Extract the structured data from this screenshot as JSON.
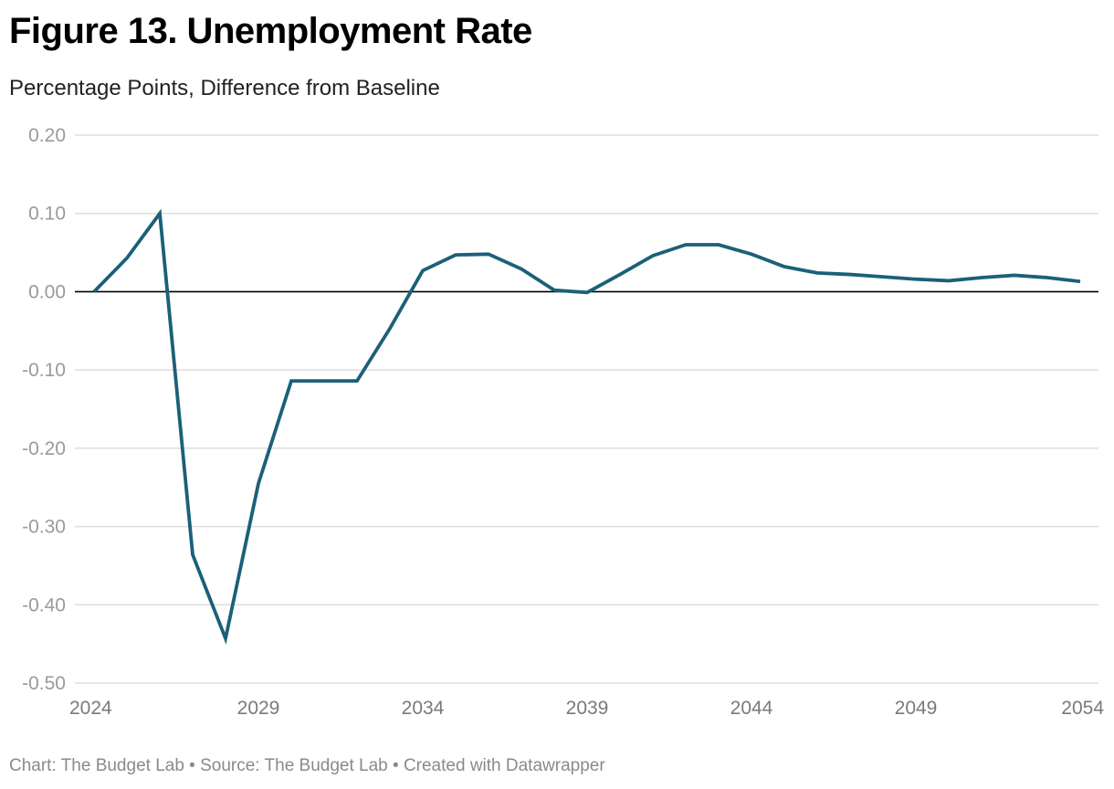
{
  "header": {
    "title": "Figure 13. Unemployment Rate",
    "subtitle": "Percentage Points, Difference from Baseline"
  },
  "footer": {
    "text": "Chart: The Budget Lab • Source: The Budget Lab • Created with Datawrapper"
  },
  "colors": {
    "line": "#1b6078",
    "grid": "#dddddd",
    "zero": "#000000"
  },
  "chart_data": {
    "type": "line",
    "title": "Figure 13. Unemployment Rate",
    "subtitle": "Percentage Points, Difference from Baseline",
    "xlabel": "",
    "ylabel": "",
    "x": [
      2024,
      2025,
      2026,
      2027,
      2028,
      2029,
      2030,
      2031,
      2032,
      2033,
      2034,
      2035,
      2036,
      2037,
      2038,
      2039,
      2040,
      2041,
      2042,
      2043,
      2044,
      2045,
      2046,
      2047,
      2048,
      2049,
      2050,
      2051,
      2052,
      2053,
      2054
    ],
    "series": [
      {
        "name": "Unemployment Rate",
        "values": [
          0.0,
          0.043,
          0.1,
          -0.336,
          -0.443,
          -0.245,
          -0.114,
          -0.114,
          -0.114,
          -0.047,
          0.027,
          0.047,
          0.048,
          0.029,
          0.002,
          -0.001,
          0.022,
          0.046,
          0.06,
          0.06,
          0.048,
          0.032,
          0.024,
          0.022,
          0.019,
          0.016,
          0.014,
          0.018,
          0.021,
          0.018,
          0.013
        ]
      }
    ],
    "xlim": [
      2024,
      2054
    ],
    "ylim": [
      -0.5,
      0.2
    ],
    "x_ticks": [
      2024,
      2029,
      2034,
      2039,
      2044,
      2049,
      2054
    ],
    "x_tick_labels": [
      "2024",
      "2029",
      "2034",
      "2039",
      "2044",
      "2049",
      "2054"
    ],
    "y_ticks": [
      0.2,
      0.1,
      0.0,
      -0.1,
      -0.2,
      -0.3,
      -0.4,
      -0.5
    ],
    "y_tick_labels": [
      "0.20",
      "0.10",
      "0.00",
      "-0.10",
      "-0.20",
      "-0.30",
      "-0.40",
      "-0.50"
    ],
    "grid": true,
    "legend": "none"
  }
}
